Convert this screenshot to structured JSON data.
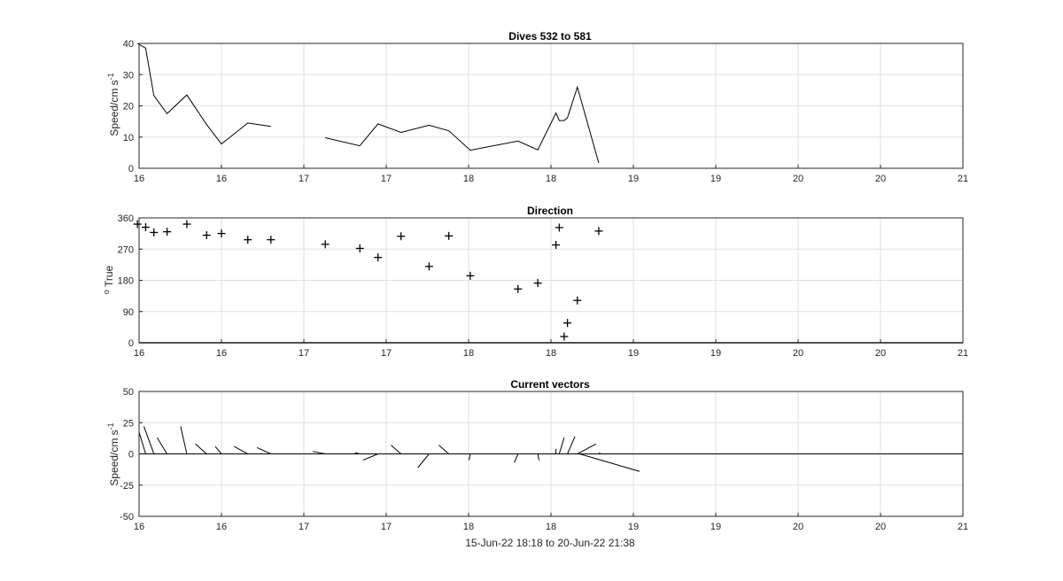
{
  "chart_data": [
    {
      "type": "line",
      "title": "Dives 532 to 581",
      "ylabel_main": "Speed/cm s",
      "ylabel_sup": "-1",
      "xlim": [
        16,
        21
      ],
      "ylim": [
        0,
        40
      ],
      "xticks": [
        "16",
        "16",
        "17",
        "17",
        "18",
        "18",
        "19",
        "19",
        "20",
        "20",
        "21"
      ],
      "yticks": [
        "0",
        "10",
        "20",
        "30",
        "40"
      ],
      "grid": true,
      "series": [
        {
          "segments": [
            [
              [
                15.99,
                40
              ],
              [
                16.04,
                38.5
              ],
              [
                16.09,
                23.3
              ],
              [
                16.17,
                17.5
              ],
              [
                16.29,
                23.5
              ],
              [
                16.41,
                14
              ],
              [
                16.5,
                7.8
              ],
              [
                16.66,
                14.5
              ],
              [
                16.8,
                13.4
              ]
            ],
            [
              [
                17.13,
                9.8
              ],
              [
                17.34,
                7.2
              ],
              [
                17.45,
                14.2
              ],
              [
                17.59,
                11.5
              ],
              [
                17.76,
                13.8
              ],
              [
                17.88,
                12
              ],
              [
                18.01,
                5.8
              ],
              [
                18.3,
                8.7
              ],
              [
                18.42,
                5.9
              ],
              [
                18.53,
                17.7
              ],
              [
                18.55,
                15.3
              ],
              [
                18.58,
                15.3
              ],
              [
                18.6,
                16.2
              ],
              [
                18.66,
                26
              ],
              [
                18.79,
                1.7
              ]
            ]
          ]
        }
      ]
    },
    {
      "type": "scatter",
      "title": "Direction",
      "ylabel_main": "o",
      "ylabel_rest": " True",
      "xlim": [
        16,
        21
      ],
      "ylim": [
        0,
        360
      ],
      "xticks": [
        "16",
        "16",
        "17",
        "17",
        "18",
        "18",
        "19",
        "19",
        "20",
        "20",
        "21"
      ],
      "yticks": [
        "0",
        "90",
        "180",
        "270",
        "360"
      ],
      "grid": true,
      "marker": "+",
      "points": [
        [
          15.99,
          342
        ],
        [
          16.04,
          333
        ],
        [
          16.09,
          318
        ],
        [
          16.17,
          320
        ],
        [
          16.29,
          342
        ],
        [
          16.41,
          310
        ],
        [
          16.5,
          315
        ],
        [
          16.66,
          297
        ],
        [
          16.8,
          297
        ],
        [
          17.13,
          284
        ],
        [
          17.34,
          272
        ],
        [
          17.45,
          246
        ],
        [
          17.59,
          307
        ],
        [
          17.76,
          220
        ],
        [
          17.88,
          308
        ],
        [
          18.01,
          193
        ],
        [
          18.3,
          155
        ],
        [
          18.42,
          172
        ],
        [
          18.53,
          282
        ],
        [
          18.55,
          332
        ],
        [
          18.58,
          18
        ],
        [
          18.6,
          57
        ],
        [
          18.66,
          122
        ],
        [
          18.79,
          322
        ]
      ]
    },
    {
      "type": "vector",
      "title": "Current vectors",
      "ylabel_main": "Speed/cm s",
      "ylabel_sup": "-1",
      "xlabel": "15-Jun-22 18:18 to 20-Jun-22 21:38",
      "xlim": [
        16,
        21
      ],
      "ylim": [
        -50,
        50
      ],
      "xticks": [
        "16",
        "16",
        "17",
        "17",
        "18",
        "18",
        "19",
        "19",
        "20",
        "20",
        "21"
      ],
      "yticks": [
        "-50",
        "-25",
        "0",
        "25",
        "50"
      ],
      "grid": true,
      "vectors": [
        [
          15.99,
          -13,
          39
        ],
        [
          16.04,
          -10,
          33
        ],
        [
          16.09,
          -8,
          22
        ],
        [
          16.17,
          -8,
          13
        ],
        [
          16.29,
          -5,
          22
        ],
        [
          16.41,
          -9,
          8
        ],
        [
          16.5,
          -5,
          6
        ],
        [
          16.66,
          -11,
          6
        ],
        [
          16.8,
          -11,
          5
        ],
        [
          17.13,
          -10,
          2
        ],
        [
          17.34,
          -4,
          1
        ],
        [
          17.45,
          -12,
          -5
        ],
        [
          17.59,
          -8,
          7
        ],
        [
          17.76,
          -9,
          -11
        ],
        [
          17.88,
          -8,
          7
        ],
        [
          18.01,
          -1,
          -5
        ],
        [
          18.3,
          -3,
          -7
        ],
        [
          18.42,
          1,
          -5
        ],
        [
          18.53,
          0,
          4
        ],
        [
          18.55,
          4,
          13
        ],
        [
          18.58,
          1,
          0
        ],
        [
          18.6,
          6,
          14
        ],
        [
          18.66,
          15,
          8
        ],
        [
          18.79,
          1,
          1
        ]
      ],
      "long_vector": [
        18.66,
        1.8,
        48,
        -14
      ]
    }
  ]
}
